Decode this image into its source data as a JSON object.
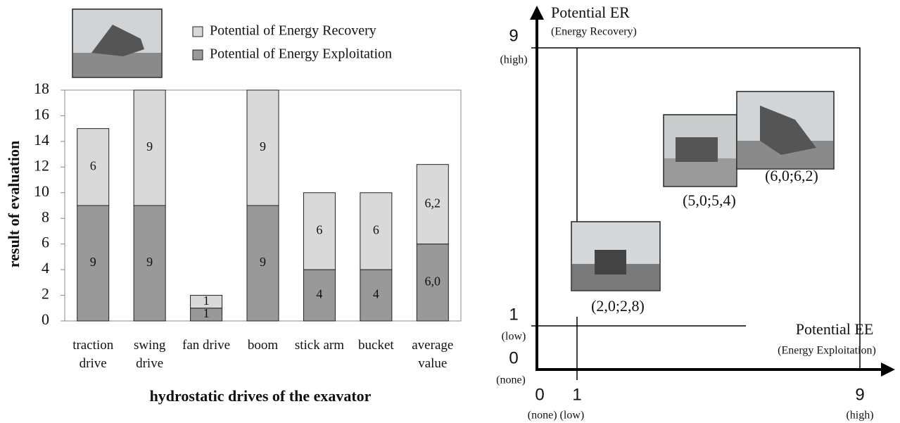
{
  "chart_data": {
    "type": "stacked-bar",
    "categories": [
      "traction drive",
      "swing drive",
      "fan drive",
      "boom",
      "stick arm",
      "bucket",
      "average value"
    ],
    "series": [
      {
        "name": "Potential of Energy Exploitation",
        "color": "#999999",
        "values": [
          9,
          9,
          1,
          9,
          4,
          4,
          6.0
        ],
        "value_labels": [
          "9",
          "9",
          "1",
          "9",
          "4",
          "4",
          "6,0"
        ]
      },
      {
        "name": "Potential of Energy Recovery",
        "color": "#d9d9d9",
        "values": [
          6,
          9,
          1,
          9,
          6,
          6,
          6.2
        ],
        "value_labels": [
          "6",
          "9",
          "1",
          "9",
          "6",
          "6",
          "6,2"
        ]
      }
    ],
    "ylabel": "result of evaluation",
    "xlabel": "hydrostatic drives of the exavator",
    "ylim": [
      0,
      18
    ],
    "yticks": [
      0,
      2,
      4,
      6,
      8,
      10,
      12,
      14,
      16,
      18
    ],
    "grid": false,
    "legend": "top"
  },
  "diagram": {
    "y_axis": {
      "title": "Potential ER",
      "subtitle": "(Energy Recovery)",
      "high": "9",
      "high_label": "(high)",
      "low": "1",
      "low_label": "(low)",
      "zero": "0",
      "zero_label": "(none)"
    },
    "x_axis": {
      "title": "Potential EE",
      "subtitle": "(Energy Exploitation)",
      "zero": "0",
      "low": "1",
      "high": "9",
      "none_low_label": "(none) (low)",
      "high_label": "(high)"
    },
    "points": [
      "(2,0;2,8)",
      "(5,0;5,4)",
      "(6,0;6,2)"
    ]
  }
}
